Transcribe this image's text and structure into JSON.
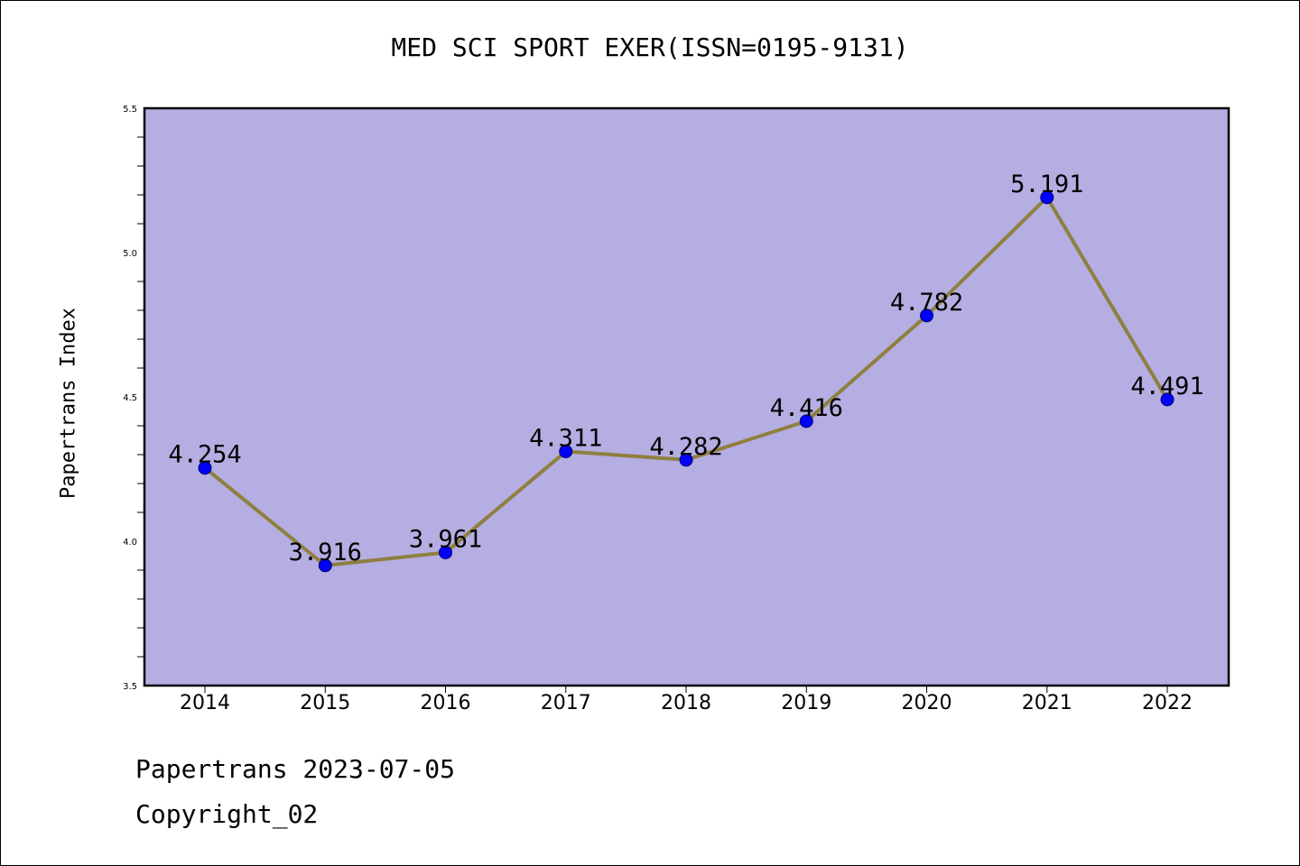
{
  "chart_data": {
    "type": "line",
    "title": "MED SCI SPORT EXER(ISSN=0195-9131)",
    "xlabel": "",
    "ylabel": "Papertrans Index",
    "categories": [
      "2014",
      "2015",
      "2016",
      "2017",
      "2018",
      "2019",
      "2020",
      "2021",
      "2022"
    ],
    "series": [
      {
        "values": [
          4.254,
          3.916,
          3.961,
          4.311,
          4.282,
          4.416,
          4.782,
          5.191,
          4.491
        ],
        "data_labels": [
          "4.254",
          "3.916",
          "3.961",
          "4.311",
          "4.282",
          "4.416",
          "4.782",
          "5.191",
          "4.491"
        ]
      }
    ],
    "ylim": [
      3.5,
      5.5
    ],
    "yticks": [
      "3.5",
      "4.0",
      "4.5",
      "5.0",
      "5.5"
    ],
    "grid": false,
    "colors": {
      "plot_background": "#b5aee2",
      "line": "#8f7f3f",
      "marker": "#0000ff",
      "marker_edge": "#00006b",
      "axis": "#000000"
    }
  },
  "footer": {
    "date_line": "Papertrans 2023-07-05",
    "copyright_line": "Copyright_02"
  }
}
